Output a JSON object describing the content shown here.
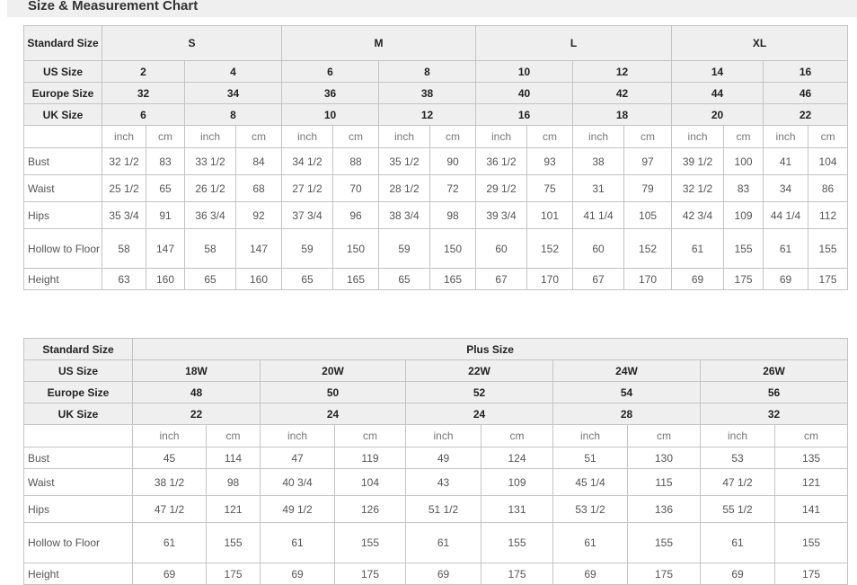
{
  "title": "Size & Measurement Chart",
  "standard_table": {
    "header_label": "Standard Size",
    "row_labels": {
      "us": "US Size",
      "eu": "Europe Size",
      "uk": "UK Size"
    },
    "groups": [
      {
        "label": "S",
        "sizes": [
          {
            "us": "2",
            "eu": "32",
            "uk": "6"
          },
          {
            "us": "4",
            "eu": "34",
            "uk": "8"
          }
        ]
      },
      {
        "label": "M",
        "sizes": [
          {
            "us": "6",
            "eu": "36",
            "uk": "10"
          },
          {
            "us": "8",
            "eu": "38",
            "uk": "12"
          }
        ]
      },
      {
        "label": "L",
        "sizes": [
          {
            "us": "10",
            "eu": "40",
            "uk": "16"
          },
          {
            "us": "12",
            "eu": "42",
            "uk": "18"
          }
        ]
      },
      {
        "label": "XL",
        "sizes": [
          {
            "us": "14",
            "eu": "44",
            "uk": "20"
          },
          {
            "us": "16",
            "eu": "46",
            "uk": "22"
          }
        ]
      }
    ],
    "units": [
      "inch",
      "cm"
    ],
    "measurements": [
      {
        "label": "Bust",
        "values": [
          "32 1/2",
          "83",
          "33 1/2",
          "84",
          "34 1/2",
          "88",
          "35 1/2",
          "90",
          "36 1/2",
          "93",
          "38",
          "97",
          "39 1/2",
          "100",
          "41",
          "104"
        ]
      },
      {
        "label": "Waist",
        "values": [
          "25 1/2",
          "65",
          "26 1/2",
          "68",
          "27 1/2",
          "70",
          "28 1/2",
          "72",
          "29 1/2",
          "75",
          "31",
          "79",
          "32 1/2",
          "83",
          "34",
          "86"
        ]
      },
      {
        "label": "Hips",
        "values": [
          "35 3/4",
          "91",
          "36 3/4",
          "92",
          "37 3/4",
          "96",
          "38 3/4",
          "98",
          "39 3/4",
          "101",
          "41 1/4",
          "105",
          "42 3/4",
          "109",
          "44 1/4",
          "112"
        ]
      },
      {
        "label": "Hollow to Floor",
        "values": [
          "58",
          "147",
          "58",
          "147",
          "59",
          "150",
          "59",
          "150",
          "60",
          "152",
          "60",
          "152",
          "61",
          "155",
          "61",
          "155"
        ]
      },
      {
        "label": "Height",
        "values": [
          "63",
          "160",
          "65",
          "160",
          "65",
          "165",
          "65",
          "165",
          "67",
          "170",
          "67",
          "170",
          "69",
          "175",
          "69",
          "175"
        ]
      }
    ]
  },
  "plus_table": {
    "header_label": "Standard Size",
    "group_label": "Plus Size",
    "row_labels": {
      "us": "US Size",
      "eu": "Europe Size",
      "uk": "UK Size"
    },
    "sizes": [
      {
        "us": "18W",
        "eu": "48",
        "uk": "22"
      },
      {
        "us": "20W",
        "eu": "50",
        "uk": "24"
      },
      {
        "us": "22W",
        "eu": "52",
        "uk": "24"
      },
      {
        "us": "24W",
        "eu": "54",
        "uk": "28"
      },
      {
        "us": "26W",
        "eu": "56",
        "uk": "32"
      }
    ],
    "units": [
      "inch",
      "cm"
    ],
    "measurements": [
      {
        "label": "Bust",
        "values": [
          "45",
          "114",
          "47",
          "119",
          "49",
          "124",
          "51",
          "130",
          "53",
          "135"
        ]
      },
      {
        "label": "Waist",
        "values": [
          "38 1/2",
          "98",
          "40 3/4",
          "104",
          "43",
          "109",
          "45 1/4",
          "115",
          "47 1/2",
          "121"
        ]
      },
      {
        "label": "Hips",
        "values": [
          "47 1/2",
          "121",
          "49 1/2",
          "126",
          "51 1/2",
          "131",
          "53 1/2",
          "136",
          "55 1/2",
          "141"
        ]
      },
      {
        "label": "Hollow to Floor",
        "values": [
          "61",
          "155",
          "61",
          "155",
          "61",
          "155",
          "61",
          "155",
          "61",
          "155"
        ]
      },
      {
        "label": "Height",
        "values": [
          "69",
          "175",
          "69",
          "175",
          "69",
          "175",
          "69",
          "175",
          "69",
          "175"
        ]
      }
    ]
  }
}
